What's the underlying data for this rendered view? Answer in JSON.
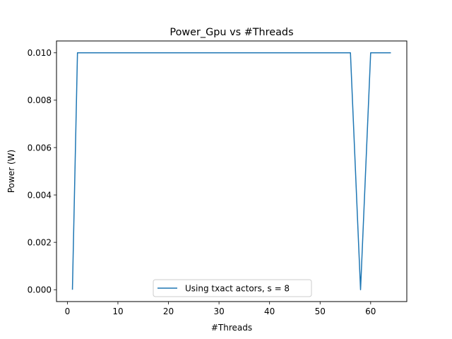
{
  "chart_data": {
    "type": "line",
    "title": "Power_Gpu vs #Threads",
    "xlabel": "#Threads",
    "ylabel": "Power (W)",
    "xlim": [
      -2.15,
      67.15
    ],
    "ylim": [
      -0.0005,
      0.0105
    ],
    "xticks": [
      0,
      10,
      20,
      30,
      40,
      50,
      60
    ],
    "xtick_labels": [
      "0",
      "10",
      "20",
      "30",
      "40",
      "50",
      "60"
    ],
    "yticks": [
      0,
      0.002,
      0.004,
      0.006,
      0.008,
      0.01
    ],
    "ytick_labels": [
      "0.000",
      "0.002",
      "0.004",
      "0.006",
      "0.008",
      "0.010"
    ],
    "grid": false,
    "legend_position": "lower center",
    "series": [
      {
        "name": "Using txact actors, s = 8",
        "color": "#1f77b4",
        "x": [
          1,
          2,
          56,
          58,
          60,
          64
        ],
        "y": [
          0.0,
          0.01,
          0.01,
          0.0,
          0.01,
          0.01
        ]
      }
    ]
  }
}
